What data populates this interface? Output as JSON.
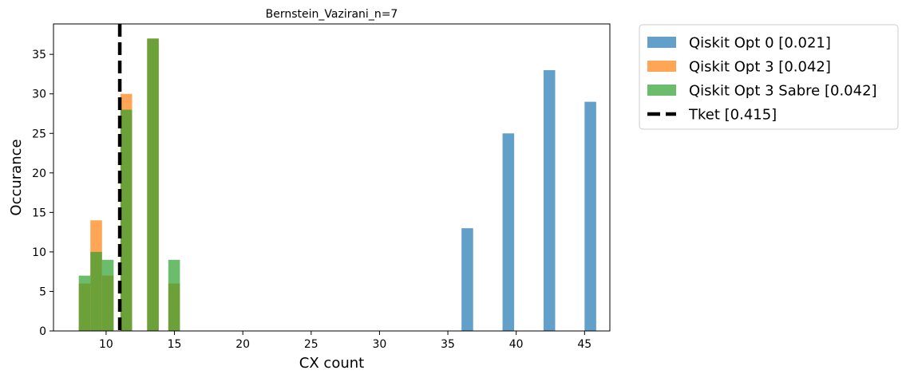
{
  "chart_data": {
    "type": "bar",
    "title": "Bernstein_Vazirani_n=7",
    "xlabel": "CX count",
    "ylabel": "Occurance",
    "xlim": [
      6.15,
      46.85
    ],
    "ylim": [
      0,
      38.85
    ],
    "xticks": [
      10,
      15,
      20,
      25,
      30,
      35,
      40,
      45
    ],
    "yticks": [
      0,
      5,
      10,
      15,
      20,
      25,
      30,
      35
    ],
    "grid": false,
    "legend_position": "outside-right-top",
    "bin_width": 0.85,
    "series": [
      {
        "name": "Qiskit Opt 0 [0.021]",
        "color": "#1f77b4",
        "opacity": 0.7,
        "bins": [
          {
            "x": 36,
            "value": 13
          },
          {
            "x": 39,
            "value": 25
          },
          {
            "x": 42,
            "value": 33
          },
          {
            "x": 45,
            "value": 29
          }
        ]
      },
      {
        "name": "Qiskit Opt 3 [0.042]",
        "color": "#ff7f0e",
        "opacity": 0.7,
        "bins": [
          {
            "x": 8,
            "value": 6
          },
          {
            "x": 8.85,
            "value": 14
          },
          {
            "x": 9.7,
            "value": 7
          },
          {
            "x": 11.05,
            "value": 30
          },
          {
            "x": 13.0,
            "value": 37
          },
          {
            "x": 14.55,
            "value": 6
          }
        ]
      },
      {
        "name": "Qiskit Opt 3 Sabre [0.042]",
        "color": "#2ca02c",
        "opacity": 0.7,
        "bins": [
          {
            "x": 8,
            "value": 7
          },
          {
            "x": 8.85,
            "value": 10
          },
          {
            "x": 9.7,
            "value": 9
          },
          {
            "x": 11.05,
            "value": 28
          },
          {
            "x": 13.0,
            "value": 37
          },
          {
            "x": 14.55,
            "value": 9
          }
        ]
      }
    ],
    "vlines": [
      {
        "name": "Tket [0.415]",
        "x": 11,
        "color": "#000000",
        "style": "dashed"
      }
    ]
  }
}
